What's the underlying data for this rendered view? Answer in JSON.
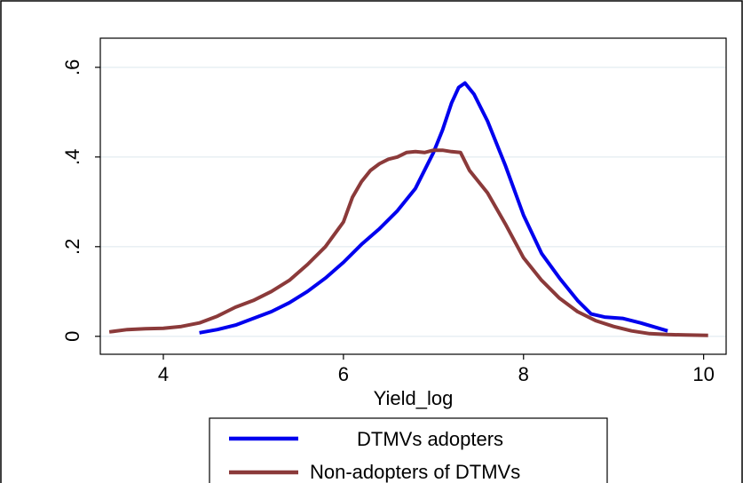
{
  "chart_data": {
    "type": "line",
    "xlabel": "Yield_log",
    "ylabel": "",
    "xlim": [
      3.3,
      10.25
    ],
    "ylim": [
      -0.04,
      0.665
    ],
    "x_ticks": [
      4,
      6,
      8,
      10
    ],
    "x_tick_labels": [
      "4",
      "6",
      "8",
      "10"
    ],
    "y_ticks": [
      0,
      0.2,
      0.4,
      0.6
    ],
    "y_tick_labels": [
      "0",
      ".2",
      ".4",
      ".6"
    ],
    "grid": "horizontal",
    "legend_position": "bottom",
    "series": [
      {
        "name": "DTMVs adopters",
        "color": "#0000ee",
        "points": [
          [
            4.4,
            0.008
          ],
          [
            4.6,
            0.015
          ],
          [
            4.8,
            0.025
          ],
          [
            5.0,
            0.04
          ],
          [
            5.2,
            0.055
          ],
          [
            5.4,
            0.075
          ],
          [
            5.6,
            0.1
          ],
          [
            5.8,
            0.13
          ],
          [
            6.0,
            0.165
          ],
          [
            6.2,
            0.205
          ],
          [
            6.4,
            0.24
          ],
          [
            6.6,
            0.28
          ],
          [
            6.8,
            0.33
          ],
          [
            7.0,
            0.41
          ],
          [
            7.1,
            0.46
          ],
          [
            7.2,
            0.52
          ],
          [
            7.28,
            0.555
          ],
          [
            7.35,
            0.565
          ],
          [
            7.45,
            0.54
          ],
          [
            7.6,
            0.48
          ],
          [
            7.8,
            0.38
          ],
          [
            8.0,
            0.27
          ],
          [
            8.2,
            0.185
          ],
          [
            8.4,
            0.13
          ],
          [
            8.6,
            0.08
          ],
          [
            8.75,
            0.05
          ],
          [
            8.9,
            0.043
          ],
          [
            9.1,
            0.04
          ],
          [
            9.3,
            0.03
          ],
          [
            9.6,
            0.012
          ]
        ]
      },
      {
        "name": "Non-adopters of DTMVs",
        "color": "#8b3a3a",
        "points": [
          [
            3.4,
            0.01
          ],
          [
            3.6,
            0.015
          ],
          [
            3.8,
            0.017
          ],
          [
            4.0,
            0.018
          ],
          [
            4.2,
            0.022
          ],
          [
            4.4,
            0.03
          ],
          [
            4.6,
            0.045
          ],
          [
            4.8,
            0.065
          ],
          [
            5.0,
            0.08
          ],
          [
            5.2,
            0.1
          ],
          [
            5.4,
            0.125
          ],
          [
            5.6,
            0.16
          ],
          [
            5.8,
            0.2
          ],
          [
            6.0,
            0.255
          ],
          [
            6.1,
            0.31
          ],
          [
            6.2,
            0.345
          ],
          [
            6.3,
            0.37
          ],
          [
            6.4,
            0.385
          ],
          [
            6.5,
            0.395
          ],
          [
            6.6,
            0.4
          ],
          [
            6.7,
            0.41
          ],
          [
            6.8,
            0.412
          ],
          [
            6.9,
            0.41
          ],
          [
            7.0,
            0.415
          ],
          [
            7.1,
            0.415
          ],
          [
            7.2,
            0.412
          ],
          [
            7.3,
            0.41
          ],
          [
            7.4,
            0.37
          ],
          [
            7.6,
            0.32
          ],
          [
            7.8,
            0.25
          ],
          [
            8.0,
            0.175
          ],
          [
            8.2,
            0.125
          ],
          [
            8.4,
            0.085
          ],
          [
            8.6,
            0.055
          ],
          [
            8.8,
            0.035
          ],
          [
            9.0,
            0.022
          ],
          [
            9.2,
            0.012
          ],
          [
            9.4,
            0.006
          ],
          [
            9.6,
            0.004
          ],
          [
            9.8,
            0.003
          ],
          [
            10.05,
            0.002
          ]
        ]
      }
    ]
  }
}
